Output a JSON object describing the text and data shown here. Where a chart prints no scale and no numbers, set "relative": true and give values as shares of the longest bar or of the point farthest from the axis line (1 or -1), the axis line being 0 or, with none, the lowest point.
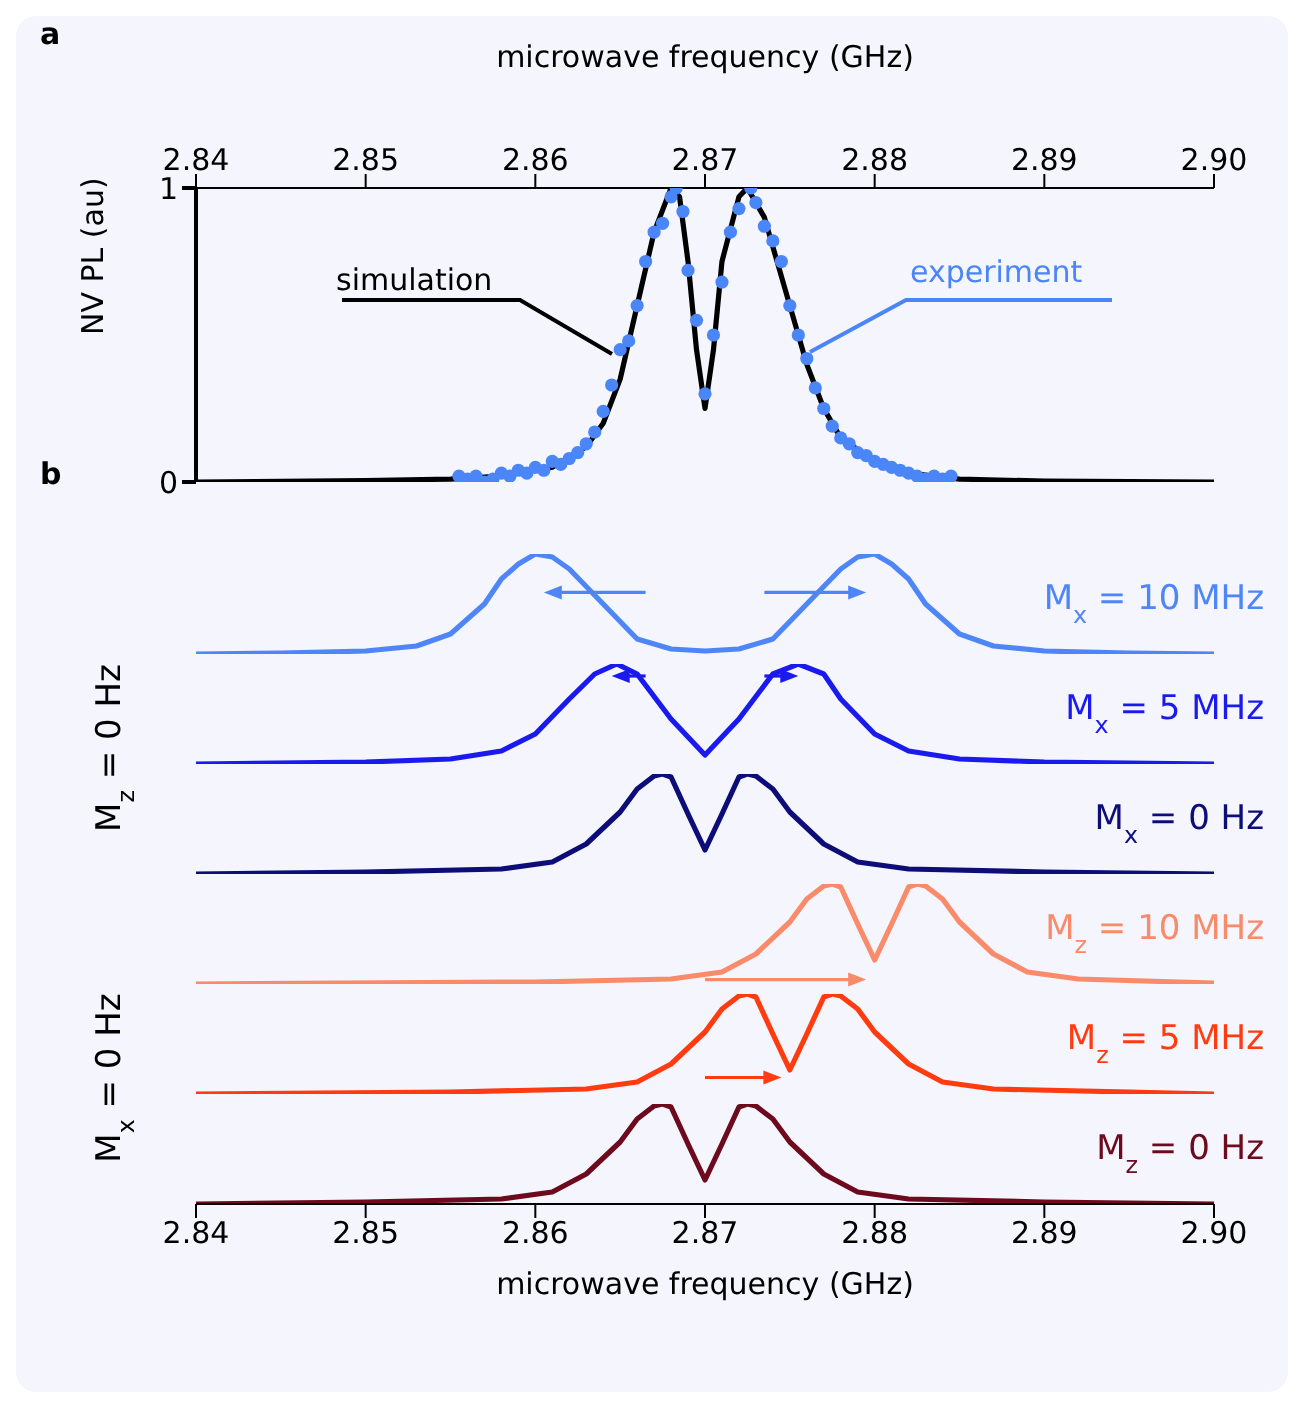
{
  "chart_data": [
    {
      "type": "line",
      "annotations": [
        "a"
      ],
      "xlabel": "microwave frequency (GHz)",
      "ylabel": "NV PL (au)",
      "xlim": [
        2.84,
        2.9
      ],
      "xticks": [
        2.84,
        2.85,
        2.86,
        2.87,
        2.88,
        2.89,
        {
          "value": 2.9,
          "label": "2.90"
        }
      ],
      "ylim": [
        0,
        1
      ],
      "yticks": [
        0,
        1
      ],
      "series": [
        {
          "name": "simulation",
          "color": "#000000",
          "x": [
            2.84,
            2.85,
            2.855,
            2.858,
            2.861,
            2.863,
            2.864,
            2.865,
            2.866,
            2.867,
            2.868,
            2.8685,
            2.869,
            2.8695,
            2.87,
            2.8705,
            2.871,
            2.872,
            2.8725,
            2.8735,
            2.875,
            2.876,
            2.877,
            2.878,
            2.88,
            2.882,
            2.885,
            2.89,
            2.9
          ],
          "values": [
            0,
            0.005,
            0.01,
            0.02,
            0.05,
            0.12,
            0.2,
            0.35,
            0.6,
            0.85,
            1.0,
            0.97,
            0.75,
            0.45,
            0.25,
            0.45,
            0.75,
            0.97,
            1.0,
            0.9,
            0.6,
            0.4,
            0.25,
            0.15,
            0.07,
            0.03,
            0.01,
            0.003,
            0
          ]
        },
        {
          "name": "experiment",
          "type": "scatter",
          "color": "#4a86f7",
          "x": [
            2.8555,
            2.856,
            2.8565,
            2.857,
            2.8575,
            2.858,
            2.8585,
            2.859,
            2.8595,
            2.86,
            2.8605,
            2.861,
            2.8615,
            2.862,
            2.8625,
            2.863,
            2.8635,
            2.864,
            2.8645,
            2.865,
            2.8655,
            2.866,
            2.8665,
            2.867,
            2.8675,
            2.868,
            2.8683,
            2.8687,
            2.869,
            2.8695,
            2.87,
            2.8705,
            2.871,
            2.8715,
            2.872,
            2.8727,
            2.873,
            2.8735,
            2.874,
            2.8745,
            2.875,
            2.8755,
            2.876,
            2.8765,
            2.877,
            2.8775,
            2.878,
            2.8785,
            2.879,
            2.8795,
            2.88,
            2.8805,
            2.881,
            2.8815,
            2.882,
            2.8825,
            2.883,
            2.8835,
            2.884,
            2.8845
          ],
          "values": [
            0.02,
            0.01,
            0.02,
            0,
            0.01,
            0.03,
            0.02,
            0.04,
            0.03,
            0.05,
            0.04,
            0.07,
            0.06,
            0.08,
            0.1,
            0.13,
            0.17,
            0.24,
            0.33,
            0.45,
            0.48,
            0.6,
            0.75,
            0.85,
            0.88,
            0.97,
            1.0,
            0.92,
            0.72,
            0.55,
            0.3,
            0.5,
            0.68,
            0.85,
            0.93,
            1.0,
            0.95,
            0.87,
            0.82,
            0.75,
            0.6,
            0.5,
            0.42,
            0.32,
            0.25,
            0.19,
            0.15,
            0.13,
            0.1,
            0.09,
            0.07,
            0.06,
            0.05,
            0.04,
            0.03,
            0.02,
            0.01,
            0.02,
            0.01,
            0.02
          ]
        }
      ]
    },
    {
      "type": "line",
      "relative": true,
      "annotations": [
        "b"
      ],
      "tick_labels": false,
      "xlim": [
        2.84,
        2.9
      ],
      "series": [
        {
          "name": "M$_{x}$ = 10 MHz",
          "color": "#4f86f7",
          "x": [
            2.84,
            2.845,
            2.85,
            2.853,
            2.855,
            2.857,
            2.858,
            2.859,
            2.86,
            2.861,
            2.862,
            2.864,
            2.866,
            2.868,
            2.87,
            2.872,
            2.874,
            2.876,
            2.878,
            2.879,
            2.88,
            2.881,
            2.882,
            2.883,
            2.885,
            2.887,
            2.89,
            2.895,
            2.9
          ],
          "values": [
            0,
            0.01,
            0.03,
            0.08,
            0.2,
            0.5,
            0.75,
            0.9,
            1.0,
            0.97,
            0.85,
            0.5,
            0.15,
            0.05,
            0.03,
            0.05,
            0.15,
            0.5,
            0.85,
            0.97,
            1.0,
            0.9,
            0.75,
            0.5,
            0.2,
            0.08,
            0.03,
            0.01,
            0
          ]
        }
      ]
    },
    {
      "type": "line",
      "relative": true,
      "ylabel": "M$_{z}$ = 0 Hz",
      "tick_labels": false,
      "xlim": [
        2.84,
        2.9
      ],
      "series": [
        {
          "name": "M$_{x}$ = 5 MHz",
          "color": "#1a1aee",
          "x": [
            2.84,
            2.85,
            2.855,
            2.858,
            2.86,
            2.862,
            2.8635,
            2.8648,
            2.866,
            2.868,
            2.87,
            2.872,
            2.874,
            2.8755,
            2.877,
            2.878,
            2.88,
            2.882,
            2.885,
            2.89,
            2.9
          ],
          "values": [
            0,
            0.02,
            0.05,
            0.13,
            0.3,
            0.65,
            0.9,
            1.0,
            0.9,
            0.45,
            0.09,
            0.45,
            0.9,
            1.0,
            0.9,
            0.65,
            0.3,
            0.13,
            0.05,
            0.02,
            0
          ]
        }
      ]
    },
    {
      "type": "line",
      "relative": true,
      "tick_labels": false,
      "xlim": [
        2.84,
        2.9
      ],
      "series": [
        {
          "name": "M$_{x}$ = 0 Hz",
          "color": "#0d0d78",
          "x": [
            2.84,
            2.85,
            2.858,
            2.861,
            2.863,
            2.865,
            2.866,
            2.867,
            2.8675,
            2.868,
            2.869,
            2.87,
            2.871,
            2.872,
            2.8725,
            2.873,
            2.874,
            2.875,
            2.877,
            2.879,
            2.882,
            2.89,
            2.9
          ],
          "values": [
            0,
            0.02,
            0.05,
            0.12,
            0.3,
            0.62,
            0.85,
            0.98,
            1.0,
            0.97,
            0.6,
            0.24,
            0.6,
            0.97,
            1.0,
            0.98,
            0.85,
            0.62,
            0.3,
            0.12,
            0.05,
            0.02,
            0
          ]
        }
      ]
    },
    {
      "type": "line",
      "relative": true,
      "tick_labels": false,
      "xlim": [
        2.84,
        2.9
      ],
      "series": [
        {
          "name": "M$_{z}$ = 10 MHz",
          "color": "#f98a6a",
          "x": [
            2.84,
            2.86,
            2.868,
            2.871,
            2.873,
            2.875,
            2.876,
            2.877,
            2.8775,
            2.878,
            2.879,
            2.88,
            2.881,
            2.882,
            2.8825,
            2.883,
            2.884,
            2.885,
            2.887,
            2.889,
            2.892,
            2.9
          ],
          "values": [
            0,
            0.02,
            0.05,
            0.12,
            0.3,
            0.62,
            0.85,
            0.98,
            1.0,
            0.97,
            0.6,
            0.24,
            0.6,
            0.97,
            1.0,
            0.98,
            0.85,
            0.62,
            0.3,
            0.12,
            0.05,
            0.01
          ]
        }
      ]
    },
    {
      "type": "line",
      "relative": true,
      "ylabel": "M$_{x}$ = 0 Hz",
      "tick_labels": false,
      "xlim": [
        2.84,
        2.9
      ],
      "series": [
        {
          "name": "M$_{z}$ = 5 MHz",
          "color": "#ff3b0f",
          "x": [
            2.84,
            2.855,
            2.863,
            2.866,
            2.868,
            2.87,
            2.871,
            2.872,
            2.8725,
            2.873,
            2.874,
            2.875,
            2.876,
            2.877,
            2.8775,
            2.878,
            2.879,
            2.88,
            2.882,
            2.884,
            2.887,
            2.895,
            2.9
          ],
          "values": [
            0,
            0.02,
            0.05,
            0.12,
            0.3,
            0.62,
            0.85,
            0.98,
            1.0,
            0.97,
            0.6,
            0.24,
            0.6,
            0.97,
            1.0,
            0.98,
            0.85,
            0.62,
            0.3,
            0.12,
            0.05,
            0.02,
            0
          ]
        }
      ]
    },
    {
      "type": "line",
      "relative": true,
      "xlabel": "microwave frequency (GHz)",
      "tick_labels": "x",
      "xlim": [
        2.84,
        2.9
      ],
      "xticks": [
        2.84,
        2.85,
        2.86,
        2.87,
        2.88,
        2.89,
        {
          "value": 2.9,
          "label": "2.90"
        }
      ],
      "series": [
        {
          "name": "M$_{z}$ = 0 Hz",
          "color": "#6e0a1e",
          "x": [
            2.84,
            2.85,
            2.858,
            2.861,
            2.863,
            2.865,
            2.866,
            2.867,
            2.8675,
            2.868,
            2.869,
            2.87,
            2.871,
            2.872,
            2.8725,
            2.873,
            2.874,
            2.875,
            2.877,
            2.879,
            2.882,
            2.89,
            2.9
          ],
          "values": [
            0,
            0.02,
            0.05,
            0.12,
            0.3,
            0.62,
            0.85,
            0.98,
            1.0,
            0.97,
            0.6,
            0.24,
            0.6,
            0.97,
            1.0,
            0.98,
            0.85,
            0.62,
            0.3,
            0.12,
            0.05,
            0.02,
            0
          ]
        }
      ]
    }
  ]
}
